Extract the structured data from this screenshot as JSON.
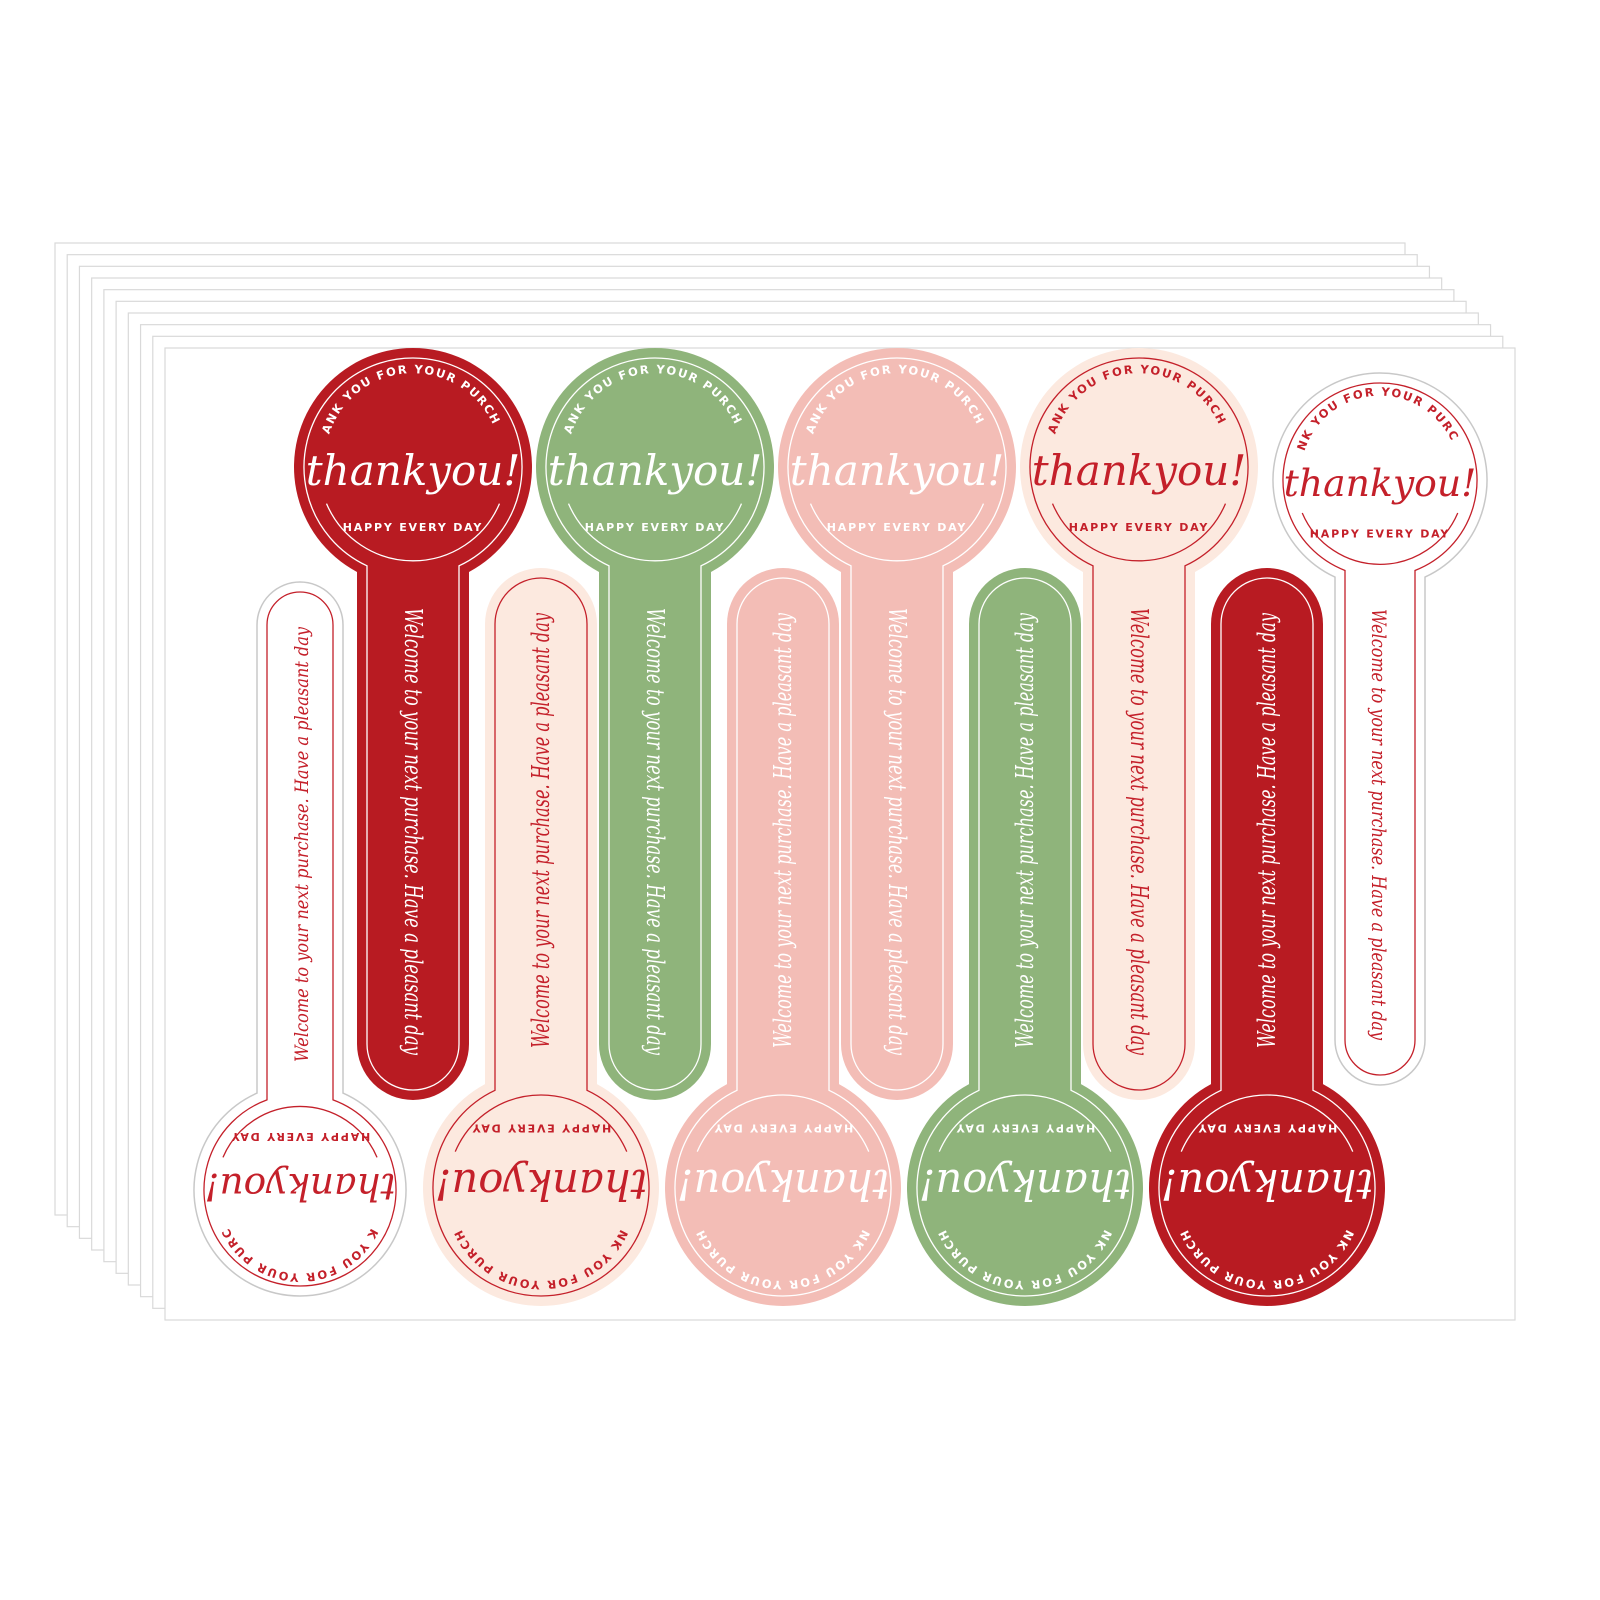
{
  "sticker_text": {
    "arc_text": "THANK YOU FOR YOUR PURCHASE",
    "main_text": "thankyou!",
    "sub_text": "HAPPY EVERY DAY",
    "stem_text": "Welcome to your next purchase. Have a pleasant day"
  },
  "colors": {
    "red": "#b81b22",
    "green": "#8fb47b",
    "pink": "#f3bdb6",
    "cream": "#fce9df",
    "white": "#ffffff",
    "ink_light": "#ffffff",
    "ink_red": "#c4202a",
    "sheet_edge": "#d9d9d9"
  },
  "stickers": [
    {
      "color": "red",
      "ink": "ink_light",
      "orientation": "up"
    },
    {
      "color": "green",
      "ink": "ink_light",
      "orientation": "up"
    },
    {
      "color": "pink",
      "ink": "ink_light",
      "orientation": "up"
    },
    {
      "color": "cream",
      "ink": "ink_red",
      "orientation": "up"
    },
    {
      "color": "white",
      "ink": "ink_red",
      "orientation": "up"
    },
    {
      "color": "white",
      "ink": "ink_red",
      "orientation": "down"
    },
    {
      "color": "cream",
      "ink": "ink_red",
      "orientation": "down"
    },
    {
      "color": "pink",
      "ink": "ink_light",
      "orientation": "down"
    },
    {
      "color": "green",
      "ink": "ink_light",
      "orientation": "down"
    },
    {
      "color": "red",
      "ink": "ink_light",
      "orientation": "down"
    }
  ]
}
